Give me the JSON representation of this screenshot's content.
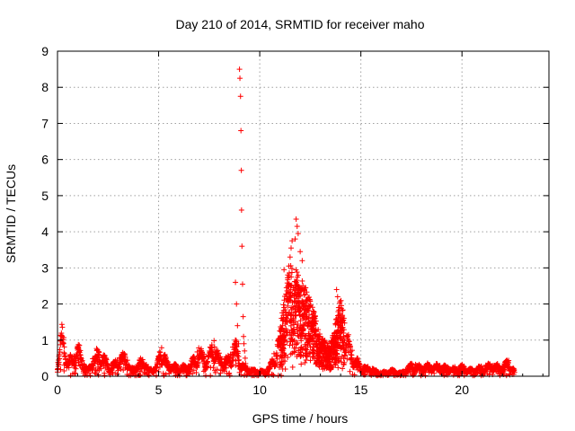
{
  "chart_data": {
    "type": "scatter",
    "title": "Day 210 of 2014, SRMTID for receiver maho",
    "xlabel": "GPS time / hours",
    "ylabel": "SRMTID / TECUs",
    "xlim": [
      0,
      24.3
    ],
    "ylim": [
      0,
      9
    ],
    "xticks": [
      0,
      5,
      10,
      15,
      20
    ],
    "yticks": [
      0,
      1,
      2,
      3,
      4,
      5,
      6,
      7,
      8,
      9
    ],
    "grid": true,
    "marker": "+",
    "series": [
      {
        "name": "SRMTID",
        "color": "#ff0000",
        "envelope_x": [
          0,
          0.2,
          0.3,
          0.5,
          0.8,
          1.0,
          1.2,
          1.5,
          2.0,
          2.3,
          2.6,
          3.0,
          3.4,
          3.6,
          4.0,
          4.3,
          4.5,
          4.9,
          5.1,
          5.5,
          6.0,
          6.5,
          7.0,
          7.4,
          7.7,
          8.0,
          8.4,
          8.8,
          9.2,
          9.6,
          10.2,
          10.5,
          11.0,
          11.5,
          12.0,
          12.5,
          13.0,
          13.5,
          14.0,
          14.5,
          15.0,
          15.5,
          16.0,
          16.5,
          17.0,
          17.5,
          18.0,
          18.5,
          19.0,
          19.5,
          20.0,
          20.5,
          21.0,
          21.5,
          22.0,
          22.3,
          22.6
        ],
        "envelope_y": [
          0.3,
          1.4,
          1.2,
          0.5,
          0.6,
          1.0,
          0.5,
          0.2,
          0.8,
          0.6,
          0.3,
          0.5,
          0.7,
          0.2,
          0.4,
          0.6,
          0.2,
          0.3,
          0.9,
          0.35,
          0.3,
          0.3,
          0.8,
          0.5,
          1.1,
          0.6,
          0.5,
          1.0,
          0.3,
          0.2,
          0.15,
          0.3,
          1.2,
          3.0,
          2.5,
          2.0,
          1.0,
          0.8,
          2.0,
          0.8,
          0.3,
          0.25,
          0.1,
          0.2,
          0.1,
          0.35,
          0.3,
          0.35,
          0.3,
          0.25,
          0.3,
          0.2,
          0.3,
          0.35,
          0.3,
          0.5,
          0.15
        ],
        "spike": {
          "x": [
            9.0,
            9.02,
            9.05,
            9.07,
            9.09,
            9.1,
            9.12,
            9.15,
            9.18,
            9.2,
            9.22,
            9.25,
            9.28,
            9.3,
            8.95,
            8.9,
            8.85,
            8.8
          ],
          "y": [
            8.5,
            8.25,
            7.75,
            6.8,
            5.7,
            4.6,
            3.6,
            2.55,
            1.65,
            1.1,
            0.9,
            0.7,
            0.5,
            0.35,
            0.9,
            1.4,
            2.0,
            2.6
          ]
        },
        "burst_peak": {
          "x": [
            11.8,
            11.85,
            11.9,
            11.75,
            11.6,
            11.55,
            11.5,
            12.0,
            12.1,
            11.2,
            11.35,
            13.8,
            13.85,
            13.9
          ],
          "y": [
            4.35,
            4.15,
            3.95,
            3.8,
            3.75,
            3.55,
            3.3,
            3.45,
            3.2,
            2.95,
            2.15,
            2.4,
            2.2,
            1.9
          ]
        }
      }
    ]
  }
}
